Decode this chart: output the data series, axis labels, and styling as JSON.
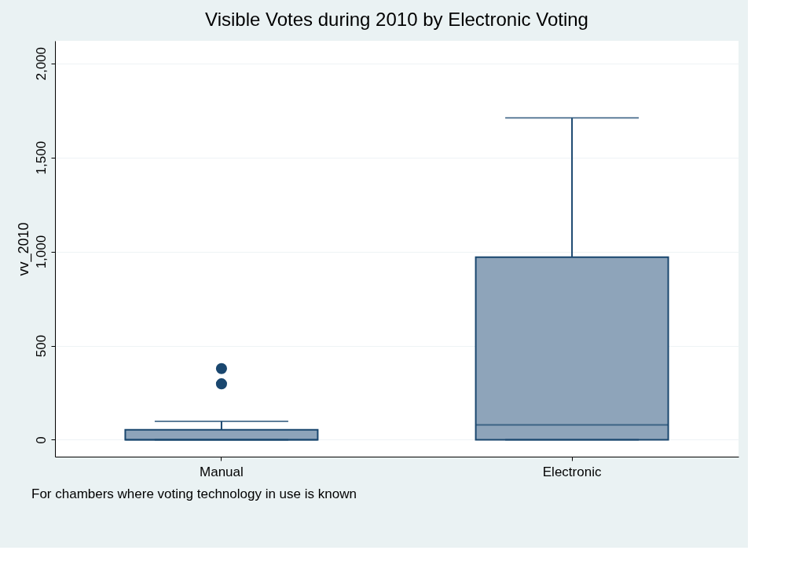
{
  "chart_data": {
    "type": "box",
    "title": "Visible Votes during 2010 by Electronic Voting",
    "ylabel": "vv_2010",
    "categories": [
      "Manual",
      "Electronic"
    ],
    "series": [
      {
        "color": "#8ea4ba",
        "boxes": [
          {
            "low": 0,
            "q1": 0,
            "median": 0,
            "q3": 53,
            "high": 98,
            "outliers": [
              297,
              378
            ]
          },
          {
            "low": 0,
            "q1": 0,
            "median": 79,
            "q3": 970,
            "high": 1710
          }
        ]
      }
    ],
    "ylim": [
      -90,
      2120
    ],
    "yticks": [
      0,
      500,
      {
        "value": 1000,
        "label": "1,000"
      },
      {
        "value": 1500,
        "label": "1,500"
      },
      {
        "value": 2000,
        "label": "2,000"
      }
    ],
    "grid": "y",
    "annotations": [
      "For chambers where voting technology in use is known"
    ]
  }
}
